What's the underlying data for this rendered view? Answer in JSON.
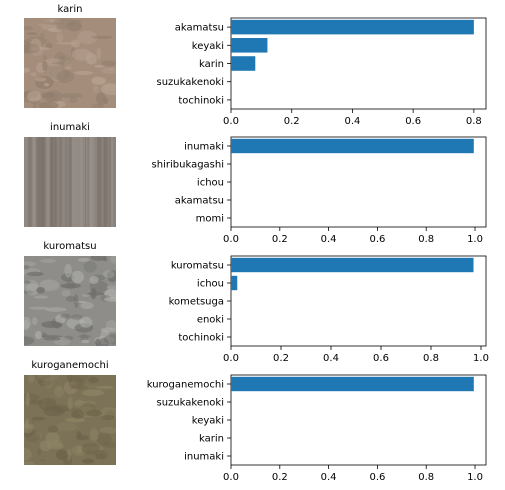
{
  "chart_data": [
    {
      "type": "bar",
      "title": "karin",
      "image_colors": [
        "#a58d7c",
        "#8f7d6c",
        "#b9a493"
      ],
      "categories": [
        "akamatsu",
        "keyaki",
        "karin",
        "suzukakenoki",
        "tochinoki"
      ],
      "values": [
        0.8,
        0.12,
        0.08,
        0.0,
        0.0
      ],
      "xlim": [
        0,
        0.84
      ],
      "xticks": [
        "0.0",
        "0.2",
        "0.4",
        "0.6",
        "0.8"
      ],
      "tick_values": [
        0,
        0.2,
        0.4,
        0.6,
        0.8
      ],
      "bar_color": "#1f77b4"
    },
    {
      "type": "bar",
      "title": "inumaki",
      "image_colors": [
        "#8a827c",
        "#7a716b",
        "#9b938c"
      ],
      "categories": [
        "inumaki",
        "shiribukagashi",
        "ichou",
        "akamatsu",
        "momi"
      ],
      "values": [
        0.995,
        0.0,
        0.0,
        0.0,
        0.0
      ],
      "xlim": [
        0,
        1.045
      ],
      "xticks": [
        "0.0",
        "0.2",
        "0.4",
        "0.6",
        "0.8",
        "1.0"
      ],
      "tick_values": [
        0,
        0.2,
        0.4,
        0.6,
        0.8,
        1.0
      ],
      "bar_color": "#1f77b4"
    },
    {
      "type": "bar",
      "title": "kuromatsu",
      "image_colors": [
        "#8e8d8a",
        "#6d6c69",
        "#b3b2ae"
      ],
      "categories": [
        "kuromatsu",
        "ichou",
        "kometsuga",
        "enoki",
        "tochinoki"
      ],
      "values": [
        0.97,
        0.025,
        0.0,
        0.0,
        0.0
      ],
      "xlim": [
        0,
        1.02
      ],
      "xticks": [
        "0.0",
        "0.2",
        "0.4",
        "0.6",
        "0.8",
        "1.0"
      ],
      "tick_values": [
        0,
        0.2,
        0.4,
        0.6,
        0.8,
        1.0
      ],
      "bar_color": "#1f77b4"
    },
    {
      "type": "bar",
      "title": "kuroganemochi",
      "image_colors": [
        "#7c7257",
        "#6a6148",
        "#8f8566"
      ],
      "categories": [
        "kuroganemochi",
        "suzukakenoki",
        "keyaki",
        "karin",
        "inumaki"
      ],
      "values": [
        0.995,
        0.0,
        0.0,
        0.0,
        0.0
      ],
      "xlim": [
        0,
        1.045
      ],
      "xticks": [
        "0.0",
        "0.2",
        "0.4",
        "0.6",
        "0.8",
        "1.0"
      ],
      "tick_values": [
        0,
        0.2,
        0.4,
        0.6,
        0.8,
        1.0
      ],
      "bar_color": "#1f77b4"
    }
  ]
}
